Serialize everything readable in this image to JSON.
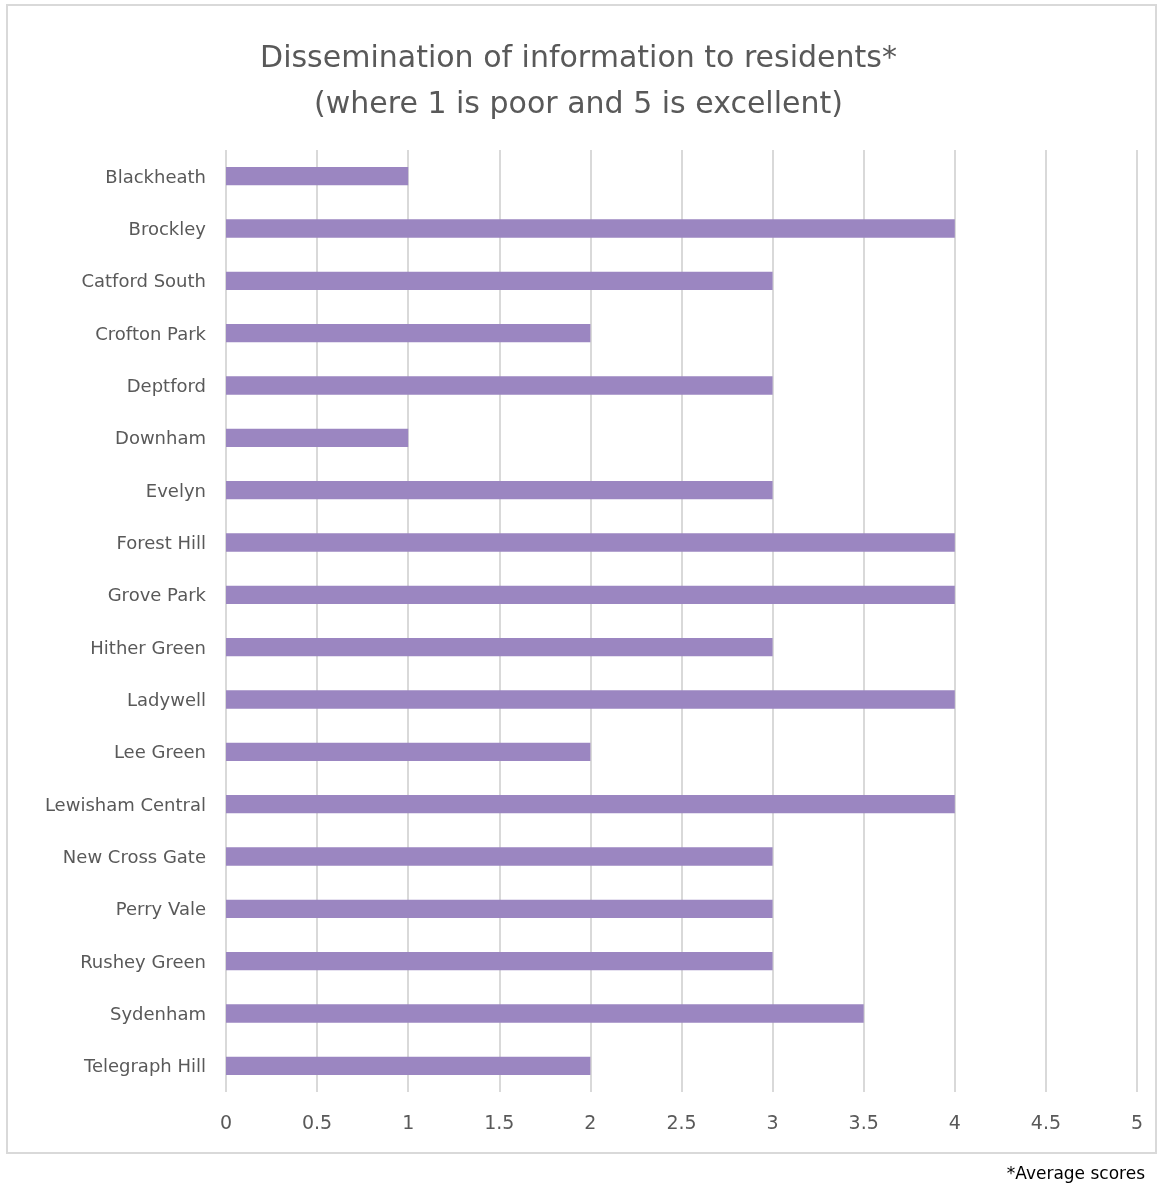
{
  "chart_data": {
    "type": "bar",
    "orientation": "horizontal",
    "title": "Dissemination of information to residents*\n(where 1 is poor and 5 is excellent)",
    "categories": [
      "Blackheath",
      "Brockley",
      "Catford South",
      "Crofton Park",
      "Deptford",
      "Downham",
      "Evelyn",
      "Forest Hill",
      "Grove Park",
      "Hither Green",
      "Ladywell",
      "Lee Green",
      "Lewisham Central",
      "New Cross Gate",
      "Perry Vale",
      "Rushey Green",
      "Sydenham",
      "Telegraph Hill"
    ],
    "values": [
      1,
      4,
      3,
      2,
      3,
      1,
      3,
      4,
      4,
      3,
      4,
      2,
      4,
      3,
      3,
      3,
      3.5,
      2
    ],
    "color": "#9b86c1",
    "xlim": [
      0,
      5
    ],
    "xticks": [
      0,
      0.5,
      1,
      1.5,
      2,
      2.5,
      3,
      3.5,
      4,
      4.5,
      5
    ],
    "grid": "x",
    "annotations": [
      "*Average scores"
    ]
  }
}
